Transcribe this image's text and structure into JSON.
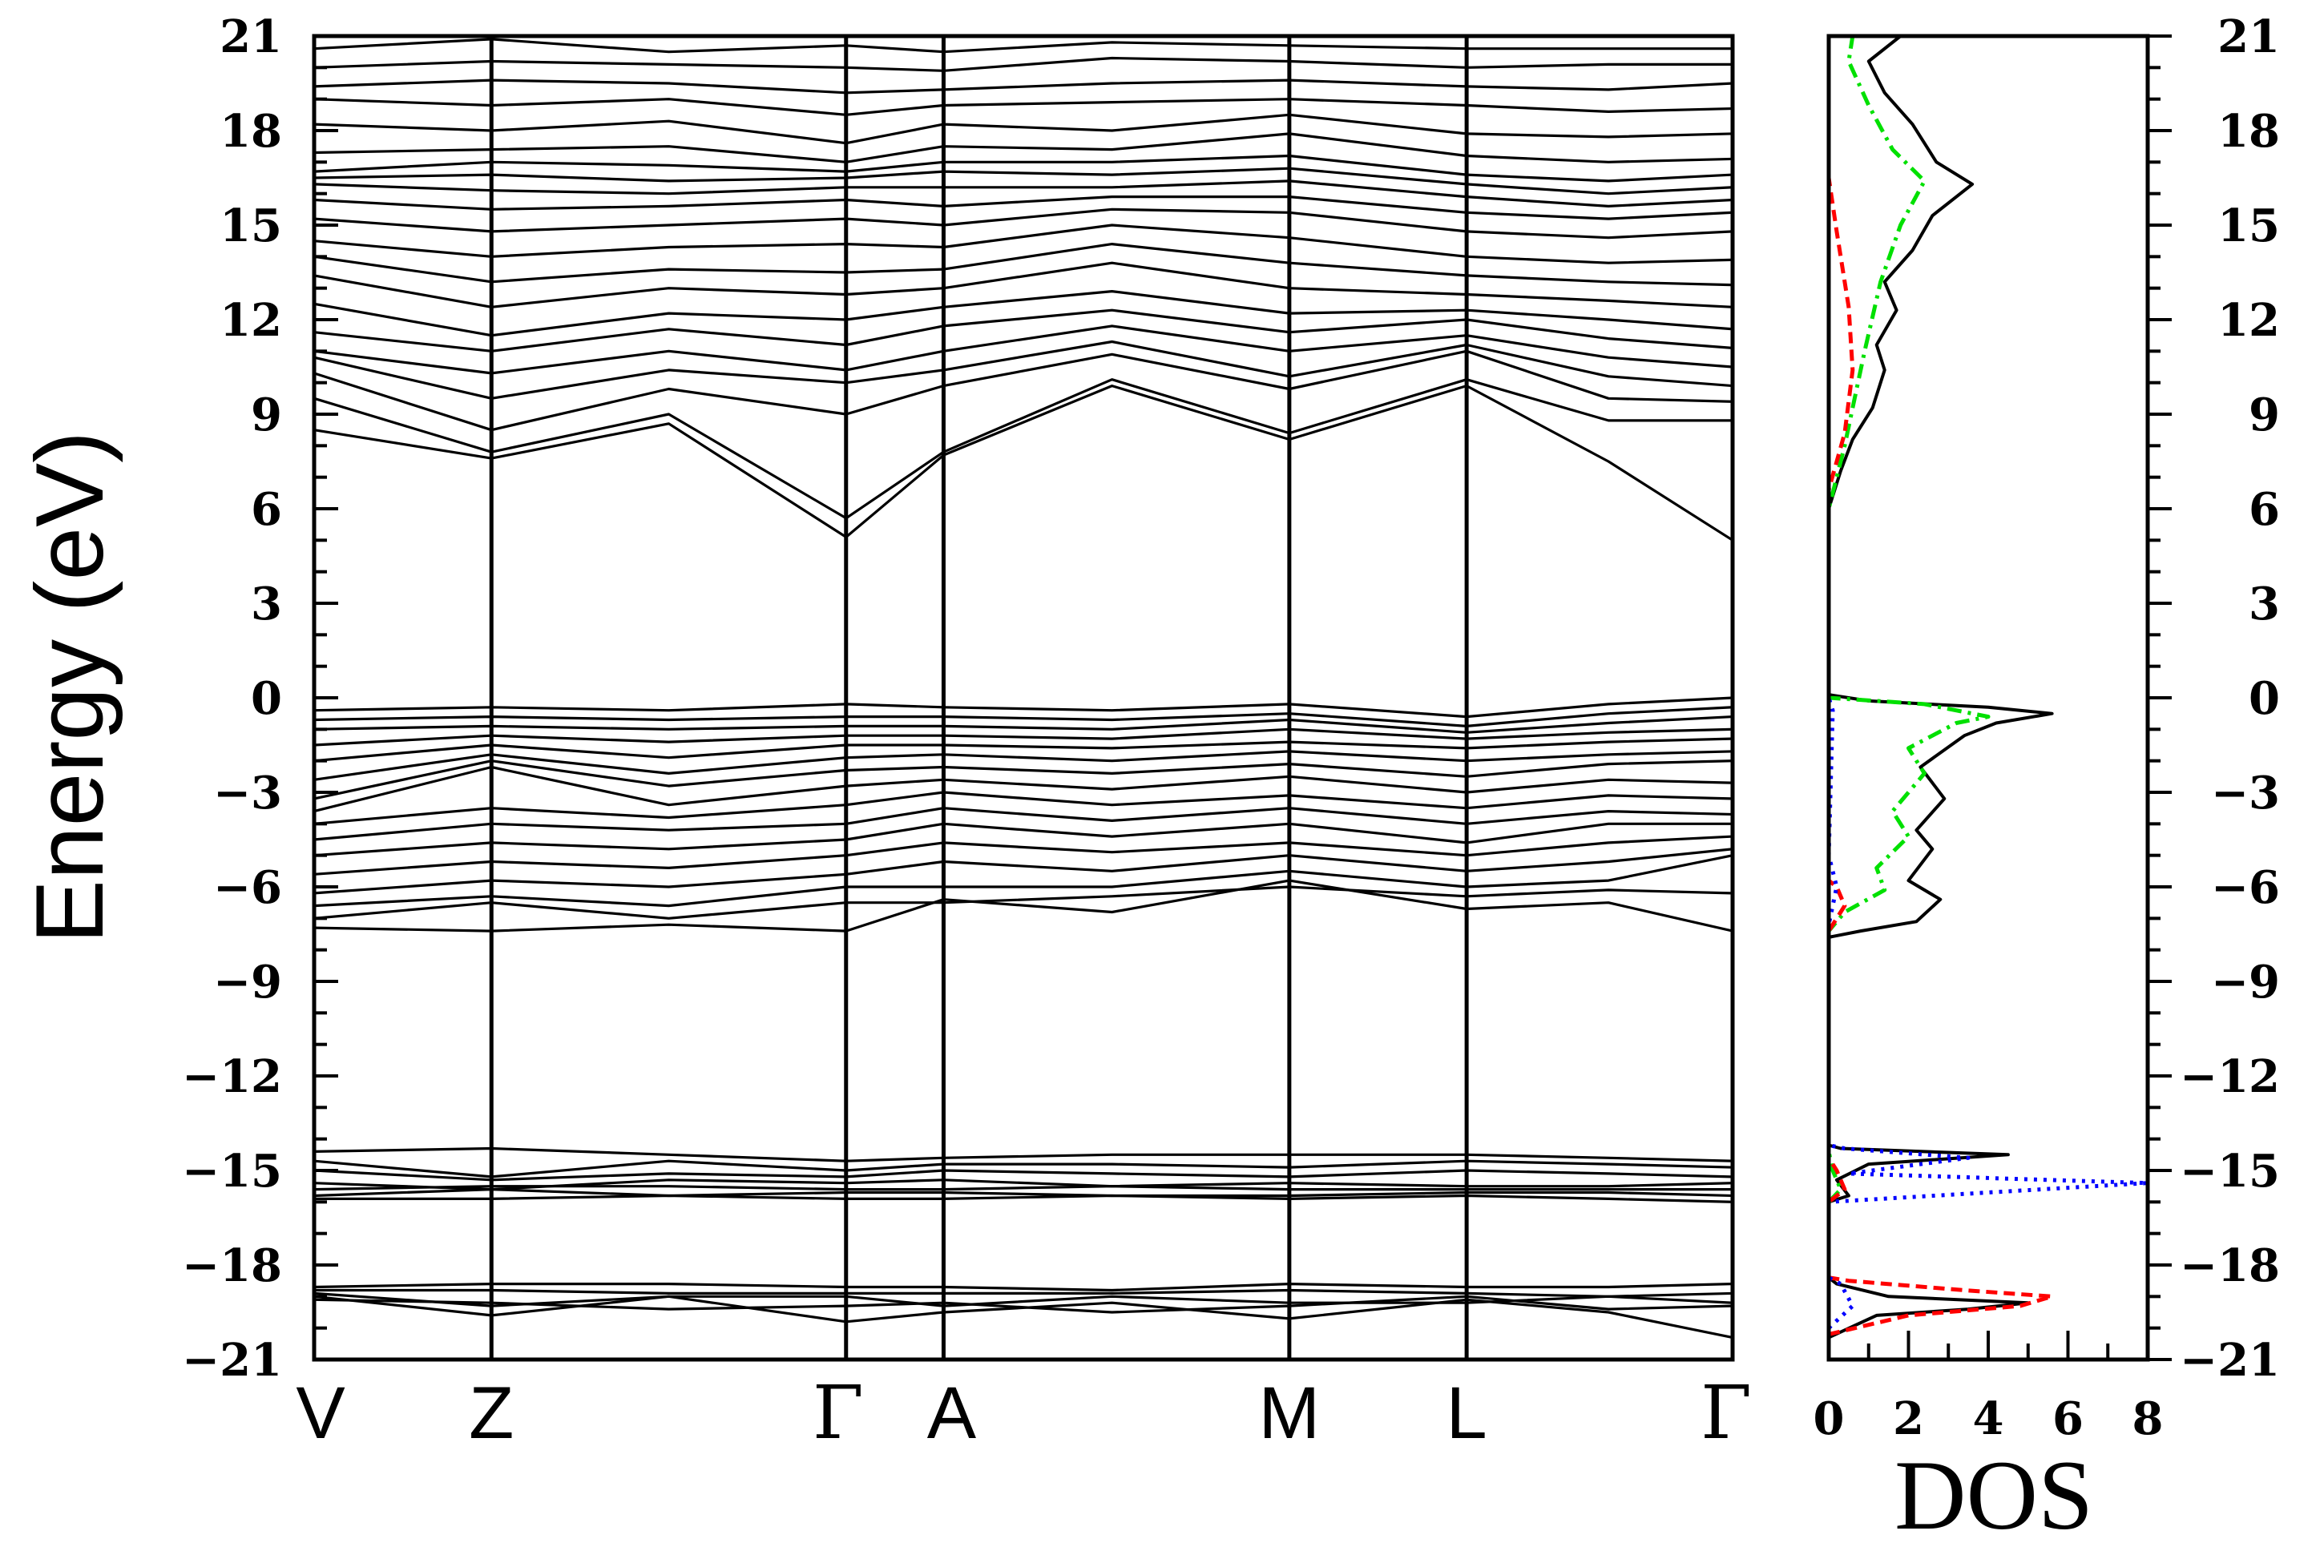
{
  "chart_data": {
    "type": "line",
    "ylabel": "Energy (eV)",
    "ylim": [
      -21,
      21
    ],
    "yticks": [
      21,
      18,
      15,
      12,
      9,
      6,
      3,
      0,
      -3,
      -6,
      -9,
      -12,
      -15,
      -18,
      -21
    ],
    "ytick_labels": [
      "21",
      "18",
      "15",
      "12",
      "9",
      "6",
      "3",
      "0",
      "−3",
      "−6",
      "−9",
      "−12",
      "−15",
      "−18",
      "−21"
    ],
    "band_structure": {
      "kpoints": [
        "V",
        "Z",
        "Γ",
        "A",
        "M",
        "L",
        "Γ"
      ],
      "kpoint_positions": [
        0,
        1,
        3,
        3.55,
        5.5,
        6.5,
        8
      ],
      "sample_x": [
        0,
        1,
        2,
        3,
        3.55,
        4.5,
        5.5,
        6.5,
        7.3,
        8
      ],
      "bands": [
        [
          -19.0,
          -19.6,
          -19.0,
          -19.8,
          -19.5,
          -19.2,
          -19.7,
          -19.1,
          -19.5,
          -20.3
        ],
        [
          -19.1,
          -19.2,
          -19.4,
          -19.3,
          -19.2,
          -19.5,
          -19.3,
          -19.0,
          -19.4,
          -19.3
        ],
        [
          -18.9,
          -19.3,
          -19.0,
          -19.0,
          -19.3,
          -19.0,
          -19.2,
          -19.2,
          -19.0,
          -19.2
        ],
        [
          -18.8,
          -18.8,
          -18.9,
          -18.9,
          -18.9,
          -18.9,
          -18.8,
          -18.9,
          -19.0,
          -18.9
        ],
        [
          -18.7,
          -18.6,
          -18.6,
          -18.7,
          -18.7,
          -18.8,
          -18.6,
          -18.7,
          -18.7,
          -18.6
        ],
        [
          -15.9,
          -15.9,
          -15.8,
          -15.9,
          -15.9,
          -15.8,
          -15.9,
          -15.8,
          -15.9,
          -16.0
        ],
        [
          -15.8,
          -15.6,
          -15.8,
          -15.7,
          -15.7,
          -15.8,
          -15.8,
          -15.7,
          -15.7,
          -15.8
        ],
        [
          -15.6,
          -15.5,
          -15.5,
          -15.6,
          -15.6,
          -15.5,
          -15.6,
          -15.6,
          -15.6,
          -15.6
        ],
        [
          -15.4,
          -15.6,
          -15.3,
          -15.4,
          -15.3,
          -15.5,
          -15.4,
          -15.5,
          -15.5,
          -15.4
        ],
        [
          -15.0,
          -15.3,
          -15.1,
          -15.2,
          -15.0,
          -15.1,
          -15.2,
          -15.0,
          -15.1,
          -15.2
        ],
        [
          -14.7,
          -15.2,
          -14.7,
          -15.0,
          -14.8,
          -14.8,
          -14.9,
          -14.7,
          -14.8,
          -14.9
        ],
        [
          -14.4,
          -14.3,
          -14.5,
          -14.7,
          -14.6,
          -14.5,
          -14.5,
          -14.5,
          -14.6,
          -14.7
        ],
        [
          -7.3,
          -7.4,
          -7.2,
          -7.4,
          -6.4,
          -6.8,
          -5.8,
          -6.7,
          -6.5,
          -7.4
        ],
        [
          -7.0,
          -6.5,
          -7.0,
          -6.5,
          -6.5,
          -6.3,
          -6.0,
          -6.3,
          -6.1,
          -6.2
        ],
        [
          -6.6,
          -6.3,
          -6.6,
          -6.0,
          -6.0,
          -6.0,
          -5.5,
          -6.0,
          -5.8,
          -5.0
        ],
        [
          -6.2,
          -5.8,
          -6.0,
          -5.6,
          -5.2,
          -5.5,
          -5.0,
          -5.5,
          -5.2,
          -4.8
        ],
        [
          -5.6,
          -5.2,
          -5.4,
          -5.0,
          -4.6,
          -4.9,
          -4.6,
          -5.0,
          -4.6,
          -4.4
        ],
        [
          -5.0,
          -4.6,
          -4.8,
          -4.5,
          -4.0,
          -4.4,
          -4.0,
          -4.6,
          -4.0,
          -4.0
        ],
        [
          -4.5,
          -4.0,
          -4.2,
          -4.0,
          -3.5,
          -3.9,
          -3.5,
          -4.0,
          -3.6,
          -3.7
        ],
        [
          -4.0,
          -3.5,
          -3.8,
          -3.4,
          -3.0,
          -3.4,
          -3.1,
          -3.5,
          -3.1,
          -3.2
        ],
        [
          -3.6,
          -2.2,
          -3.4,
          -2.8,
          -2.6,
          -2.9,
          -2.5,
          -3.0,
          -2.6,
          -2.7
        ],
        [
          -3.2,
          -2.0,
          -2.8,
          -2.3,
          -2.2,
          -2.4,
          -2.1,
          -2.5,
          -2.1,
          -2.0
        ],
        [
          -2.6,
          -1.8,
          -2.4,
          -1.9,
          -1.8,
          -2.0,
          -1.7,
          -2.0,
          -1.8,
          -1.7
        ],
        [
          -2.0,
          -1.5,
          -1.9,
          -1.5,
          -1.5,
          -1.6,
          -1.4,
          -1.6,
          -1.4,
          -1.3
        ],
        [
          -1.5,
          -1.2,
          -1.4,
          -1.2,
          -1.2,
          -1.3,
          -1.0,
          -1.3,
          -1.1,
          -1.0
        ],
        [
          -1.0,
          -0.9,
          -1.0,
          -0.9,
          -0.9,
          -1.0,
          -0.7,
          -1.1,
          -0.8,
          -0.6
        ],
        [
          -0.7,
          -0.6,
          -0.7,
          -0.6,
          -0.6,
          -0.7,
          -0.5,
          -0.9,
          -0.5,
          -0.3
        ],
        [
          -0.4,
          -0.3,
          -0.4,
          -0.2,
          -0.3,
          -0.4,
          -0.2,
          -0.6,
          -0.2,
          0.0
        ],
        [
          8.5,
          7.6,
          8.7,
          5.1,
          7.7,
          9.9,
          8.2,
          9.9,
          7.5,
          5.0
        ],
        [
          9.5,
          7.8,
          9.0,
          5.7,
          7.8,
          10.1,
          8.4,
          10.1,
          8.8,
          8.8
        ],
        [
          10.3,
          8.5,
          9.8,
          9.0,
          9.9,
          10.9,
          9.8,
          11.0,
          9.5,
          9.4
        ],
        [
          10.8,
          9.5,
          10.4,
          10.0,
          10.4,
          11.3,
          10.2,
          11.2,
          10.2,
          9.9
        ],
        [
          11.0,
          10.3,
          11.0,
          10.4,
          11.0,
          11.8,
          11.0,
          11.5,
          10.8,
          10.5
        ],
        [
          11.6,
          11.0,
          11.7,
          11.2,
          11.8,
          12.3,
          11.6,
          12.0,
          11.4,
          11.1
        ],
        [
          12.5,
          11.5,
          12.2,
          12.0,
          12.4,
          12.9,
          12.2,
          12.3,
          12.0,
          11.7
        ],
        [
          13.4,
          12.4,
          13.0,
          12.8,
          13.0,
          13.8,
          13.0,
          12.8,
          12.6,
          12.4
        ],
        [
          14.0,
          13.2,
          13.6,
          13.5,
          13.6,
          14.4,
          13.8,
          13.4,
          13.2,
          13.1
        ],
        [
          14.5,
          14.0,
          14.3,
          14.4,
          14.3,
          15.0,
          14.6,
          14.0,
          13.8,
          13.9
        ],
        [
          15.2,
          14.8,
          15.0,
          15.2,
          15.0,
          15.5,
          15.4,
          14.8,
          14.6,
          14.8
        ],
        [
          15.8,
          15.5,
          15.6,
          15.8,
          15.6,
          15.9,
          15.9,
          15.4,
          15.2,
          15.4
        ],
        [
          16.3,
          16.1,
          16.0,
          16.2,
          16.2,
          16.2,
          16.4,
          15.9,
          15.6,
          15.8
        ],
        [
          16.5,
          16.6,
          16.4,
          16.5,
          16.7,
          16.6,
          16.8,
          16.3,
          16.0,
          16.2
        ],
        [
          16.7,
          17.0,
          16.9,
          16.7,
          17.0,
          17.0,
          17.2,
          16.6,
          16.4,
          16.6
        ],
        [
          17.3,
          17.4,
          17.5,
          17.0,
          17.5,
          17.4,
          17.9,
          17.2,
          17.0,
          17.1
        ],
        [
          18.2,
          18.0,
          18.3,
          17.6,
          18.2,
          18.0,
          18.5,
          17.9,
          17.8,
          17.9
        ],
        [
          19.0,
          18.8,
          19.0,
          18.5,
          18.8,
          18.9,
          19.0,
          18.8,
          18.6,
          18.7
        ],
        [
          19.4,
          19.6,
          19.5,
          19.2,
          19.3,
          19.5,
          19.6,
          19.4,
          19.3,
          19.5
        ],
        [
          20.0,
          20.2,
          20.1,
          20.0,
          19.9,
          20.3,
          20.2,
          20.0,
          20.1,
          20.1
        ],
        [
          20.6,
          20.9,
          20.5,
          20.7,
          20.5,
          20.8,
          20.7,
          20.6,
          20.6,
          20.6
        ]
      ]
    },
    "dos": {
      "xlabel": "DOS",
      "xlim": [
        0,
        8
      ],
      "xticks": [
        0,
        2,
        4,
        6,
        8
      ],
      "series": [
        {
          "color": "#000000",
          "style": "solid",
          "points": [
            [
              0.0,
              -20.3
            ],
            [
              1.2,
              -19.6
            ],
            [
              3.5,
              -19.4
            ],
            [
              5.0,
              -19.2
            ],
            [
              1.5,
              -19.0
            ],
            [
              0.2,
              -18.6
            ],
            [
              0.0,
              -18.4
            ],
            [
              0.0,
              -16.0
            ],
            [
              0.5,
              -15.8
            ],
            [
              0.2,
              -15.3
            ],
            [
              1.0,
              -14.8
            ],
            [
              4.5,
              -14.5
            ],
            [
              0.3,
              -14.3
            ],
            [
              0.0,
              -14.2
            ],
            [
              0.0,
              -7.6
            ],
            [
              0.8,
              -7.4
            ],
            [
              2.2,
              -7.1
            ],
            [
              2.8,
              -6.4
            ],
            [
              2.0,
              -5.8
            ],
            [
              2.6,
              -4.8
            ],
            [
              2.2,
              -4.2
            ],
            [
              2.9,
              -3.2
            ],
            [
              2.3,
              -2.2
            ],
            [
              3.4,
              -1.2
            ],
            [
              4.2,
              -0.8
            ],
            [
              5.6,
              -0.5
            ],
            [
              4.0,
              -0.3
            ],
            [
              1.0,
              -0.1
            ],
            [
              0.0,
              0.1
            ],
            [
              0.0,
              6.0
            ],
            [
              0.3,
              7.2
            ],
            [
              0.6,
              8.2
            ],
            [
              1.1,
              9.2
            ],
            [
              1.4,
              10.4
            ],
            [
              1.2,
              11.2
            ],
            [
              1.7,
              12.3
            ],
            [
              1.4,
              13.2
            ],
            [
              2.1,
              14.2
            ],
            [
              2.6,
              15.3
            ],
            [
              3.6,
              16.3
            ],
            [
              2.7,
              17.0
            ],
            [
              2.1,
              18.2
            ],
            [
              1.4,
              19.2
            ],
            [
              1.0,
              20.2
            ],
            [
              1.8,
              21.0
            ]
          ]
        },
        {
          "color": "#00e000",
          "style": "dashdot",
          "points": [
            [
              0.0,
              -16.0
            ],
            [
              0.3,
              -15.6
            ],
            [
              0.1,
              -15.0
            ],
            [
              0.0,
              -14.4
            ],
            [
              0.0,
              -7.4
            ],
            [
              0.4,
              -6.8
            ],
            [
              1.4,
              -6.1
            ],
            [
              1.2,
              -5.4
            ],
            [
              2.0,
              -4.4
            ],
            [
              1.6,
              -3.6
            ],
            [
              2.4,
              -2.4
            ],
            [
              2.0,
              -1.6
            ],
            [
              3.2,
              -0.8
            ],
            [
              4.0,
              -0.6
            ],
            [
              2.4,
              -0.2
            ],
            [
              0.0,
              0.0
            ],
            [
              0.0,
              6.0
            ],
            [
              0.4,
              8.0
            ],
            [
              0.6,
              9.2
            ],
            [
              0.9,
              11.0
            ],
            [
              1.3,
              13.2
            ],
            [
              1.8,
              15.0
            ],
            [
              2.4,
              16.4
            ],
            [
              1.6,
              17.4
            ],
            [
              1.0,
              18.8
            ],
            [
              0.5,
              20.2
            ],
            [
              0.6,
              21.0
            ]
          ]
        },
        {
          "color": "#ff0000",
          "style": "dashed",
          "points": [
            [
              0.0,
              -20.2
            ],
            [
              2.0,
              -19.6
            ],
            [
              4.8,
              -19.3
            ],
            [
              5.6,
              -19.0
            ],
            [
              3.4,
              -18.8
            ],
            [
              0.5,
              -18.5
            ],
            [
              0.0,
              -18.4
            ],
            [
              0.0,
              -16.0
            ],
            [
              0.4,
              -15.6
            ],
            [
              0.2,
              -15.0
            ],
            [
              0.0,
              -14.6
            ],
            [
              0.0,
              -7.4
            ],
            [
              0.4,
              -6.6
            ],
            [
              0.2,
              -6.0
            ],
            [
              0.0,
              -5.8
            ],
            [
              0.0,
              6.6
            ],
            [
              0.4,
              8.4
            ],
            [
              0.6,
              10.4
            ],
            [
              0.5,
              12.4
            ],
            [
              0.2,
              14.8
            ],
            [
              0.0,
              16.5
            ],
            [
              0.0,
              21.0
            ]
          ]
        },
        {
          "color": "#0000ff",
          "style": "dotted",
          "points": [
            [
              0.0,
              -20.0
            ],
            [
              0.6,
              -19.3
            ],
            [
              0.3,
              -18.6
            ],
            [
              0.0,
              -18.4
            ],
            [
              0.0,
              -16.0
            ],
            [
              8.0,
              -15.4
            ],
            [
              0.5,
              -15.1
            ],
            [
              3.5,
              -14.6
            ],
            [
              0.4,
              -14.3
            ],
            [
              0.0,
              -14.2
            ],
            [
              0.0,
              -7.2
            ],
            [
              0.2,
              -6.0
            ],
            [
              0.0,
              -5.0
            ],
            [
              0.1,
              -0.4
            ],
            [
              0.0,
              0.0
            ],
            [
              0.0,
              21.0
            ]
          ]
        }
      ]
    }
  }
}
